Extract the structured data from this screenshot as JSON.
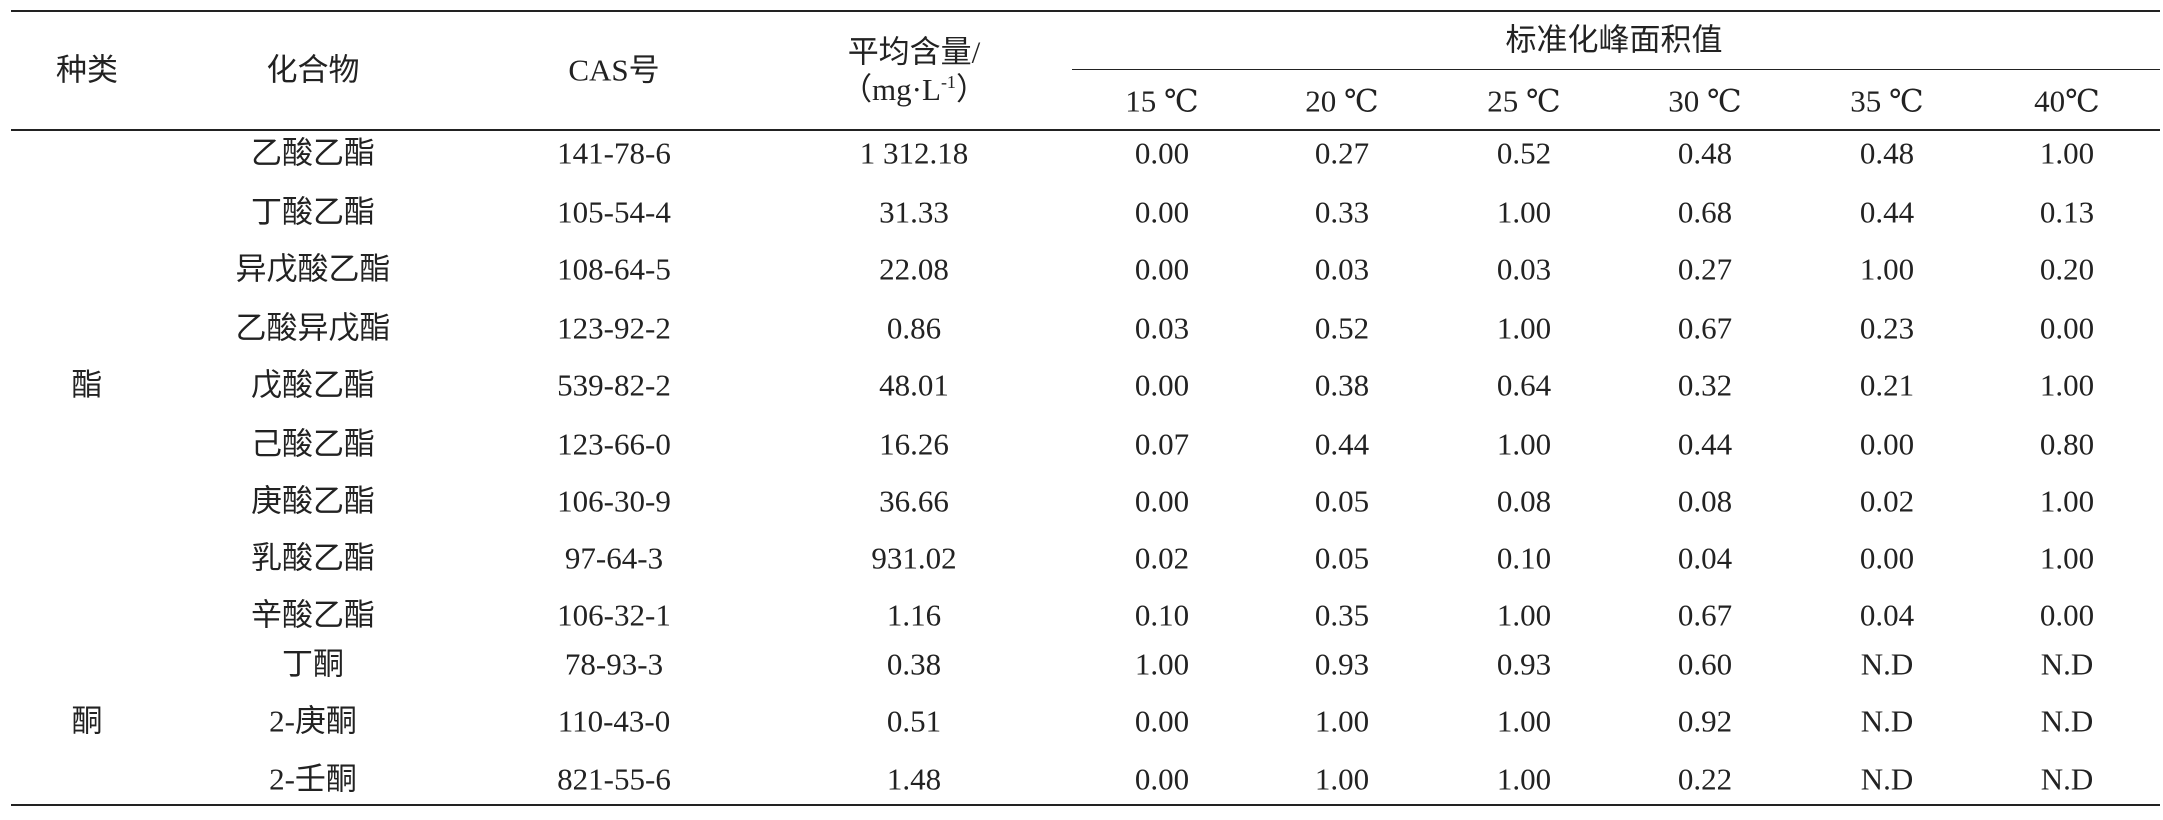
{
  "table": {
    "header": {
      "category": "种类",
      "compound": "化合物",
      "cas": "CAS号",
      "average": {
        "line1": "平均含量/",
        "unit": "（mg·L",
        "sup": "-1",
        "close": "）"
      },
      "group": "标准化峰面积值",
      "temps": [
        "15 ℃",
        "20 ℃",
        "25 ℃",
        "30 ℃",
        "35 ℃",
        "40℃"
      ]
    },
    "groups": [
      {
        "category": "酯",
        "rows": [
          [
            "乙酸乙酯",
            "141-78-6",
            "1 312.18",
            "0.00",
            "0.27",
            "0.52",
            "0.48",
            "0.48",
            "1.00"
          ],
          [
            "丁酸乙酯",
            "105-54-4",
            "31.33",
            "0.00",
            "0.33",
            "1.00",
            "0.68",
            "0.44",
            "0.13"
          ],
          [
            "异戊酸乙酯",
            "108-64-5",
            "22.08",
            "0.00",
            "0.03",
            "0.03",
            "0.27",
            "1.00",
            "0.20"
          ],
          [
            "乙酸异戊酯",
            "123-92-2",
            "0.86",
            "0.03",
            "0.52",
            "1.00",
            "0.67",
            "0.23",
            "0.00"
          ],
          [
            "戊酸乙酯",
            "539-82-2",
            "48.01",
            "0.00",
            "0.38",
            "0.64",
            "0.32",
            "0.21",
            "1.00"
          ],
          [
            "己酸乙酯",
            "123-66-0",
            "16.26",
            "0.07",
            "0.44",
            "1.00",
            "0.44",
            "0.00",
            "0.80"
          ],
          [
            "庚酸乙酯",
            "106-30-9",
            "36.66",
            "0.00",
            "0.05",
            "0.08",
            "0.08",
            "0.02",
            "1.00"
          ],
          [
            "乳酸乙酯",
            "97-64-3",
            "931.02",
            "0.02",
            "0.05",
            "0.10",
            "0.04",
            "0.00",
            "1.00"
          ],
          [
            "辛酸乙酯",
            "106-32-1",
            "1.16",
            "0.10",
            "0.35",
            "1.00",
            "0.67",
            "0.04",
            "0.00"
          ]
        ]
      },
      {
        "category": "酮",
        "rows": [
          [
            "丁酮",
            "78-93-3",
            "0.38",
            "1.00",
            "0.93",
            "0.93",
            "0.60",
            "N.D",
            "N.D"
          ],
          [
            "2-庚酮",
            "110-43-0",
            "0.51",
            "0.00",
            "1.00",
            "1.00",
            "0.92",
            "N.D",
            "N.D"
          ],
          [
            "2-壬酮",
            "821-55-6",
            "1.48",
            "0.00",
            "1.00",
            "1.00",
            "0.22",
            "N.D",
            "N.D"
          ]
        ]
      }
    ]
  }
}
